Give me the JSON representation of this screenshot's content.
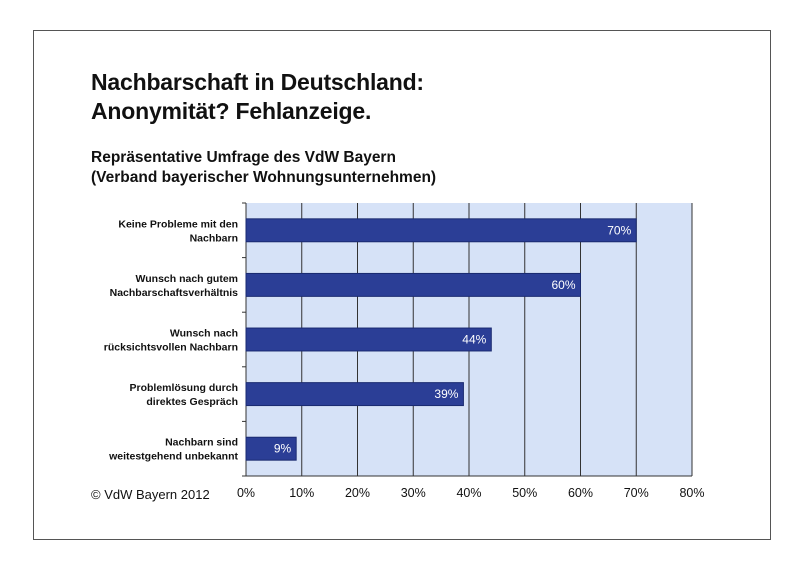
{
  "title": {
    "line1": "Nachbarschaft in Deutschland:",
    "line2": "Anonymität? Fehlanzeige."
  },
  "subtitle": {
    "line1": "Repräsentative Umfrage des VdW Bayern",
    "line2": "(Verband bayerischer Wohnungsunternehmen)"
  },
  "footer": "© VdW Bayern 2012",
  "colors": {
    "plot_background": "#d6e2f7",
    "bar": "#2b3e96",
    "bar_edge": "#1a2a70",
    "grid": "#333333"
  },
  "chart_data": {
    "type": "bar",
    "orientation": "horizontal",
    "categories": [
      [
        "Keine Probleme mit den",
        "Nachbarn"
      ],
      [
        "Wunsch nach gutem",
        "Nachbarschaftsverhältnis"
      ],
      [
        "Wunsch nach",
        "rücksichtsvollen Nachbarn"
      ],
      [
        "Problemlösung durch",
        "direktes Gespräch"
      ],
      [
        "Nachbarn sind",
        "weitestgehend unbekannt"
      ]
    ],
    "values": [
      70,
      60,
      44,
      39,
      9
    ],
    "value_labels": [
      "70%",
      "60%",
      "44%",
      "39%",
      "9%"
    ],
    "xlim": [
      0,
      80
    ],
    "xticks": [
      0,
      10,
      20,
      30,
      40,
      50,
      60,
      70,
      80
    ],
    "xtick_labels": [
      "0%",
      "10%",
      "20%",
      "30%",
      "40%",
      "50%",
      "60%",
      "70%",
      "80%"
    ],
    "grid": true,
    "legend": "none"
  }
}
